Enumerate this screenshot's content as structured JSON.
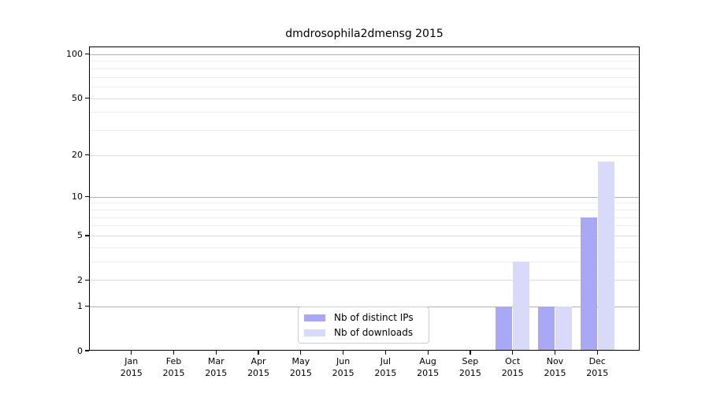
{
  "chart_data": {
    "type": "bar",
    "title": "dmdrosophila2dmensg 2015",
    "categories": [
      "Jan 2015",
      "Feb 2015",
      "Mar 2015",
      "Apr 2015",
      "May 2015",
      "Jun 2015",
      "Jul 2015",
      "Aug 2015",
      "Sep 2015",
      "Oct 2015",
      "Nov 2015",
      "Dec 2015"
    ],
    "series": [
      {
        "name": "Nb of distinct IPs",
        "color": "#a8a8f6",
        "values": [
          0,
          0,
          0,
          0,
          0,
          0,
          0,
          0,
          0,
          1,
          1,
          7
        ]
      },
      {
        "name": "Nb of downloads",
        "color": "#d9d9fa",
        "values": [
          0,
          0,
          0,
          0,
          0,
          0,
          0,
          0,
          0,
          3,
          1,
          18
        ]
      }
    ],
    "y_axis": {
      "scale": "log1p",
      "ticks": [
        0,
        1,
        2,
        5,
        10,
        20,
        50,
        100
      ],
      "minor_gridlines": [
        3,
        4,
        6,
        7,
        8,
        9,
        30,
        40,
        60,
        70,
        80,
        90
      ],
      "emphasized_gridlines": [
        1,
        10,
        100
      ],
      "range": [
        0,
        113
      ]
    },
    "grid": true,
    "legend": {
      "position": "lower center",
      "entries": [
        "Nb of distinct IPs",
        "Nb of downloads"
      ]
    },
    "colors": {
      "bar_distinct_ips": "#a8a8f6",
      "bar_downloads": "#d9d9fa",
      "grid_major": "#b3b3b3",
      "grid_mid": "#dcdcdc",
      "grid_minor": "#ededed",
      "axis": "#000000"
    }
  }
}
